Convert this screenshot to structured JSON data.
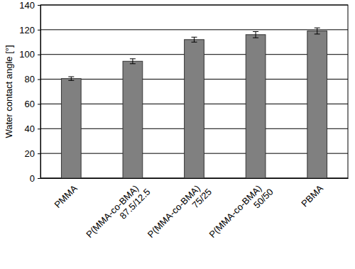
{
  "chart_data": {
    "type": "bar",
    "y_label": "Water contact angle [°]",
    "categories": [
      "PMMA",
      "P(MMA-co-BMA) 87.5/12.5",
      "P(MMA-co-BMA) 75/25",
      "P(MMA-co-BMA) 50/50",
      "PBMA"
    ],
    "values": [
      80.5,
      94.5,
      112,
      116,
      119
    ],
    "errors": [
      1.5,
      2,
      2,
      2.5,
      2.5
    ],
    "color": "#808080",
    "ylim": [
      0,
      140
    ],
    "yticks": [
      0,
      20,
      40,
      60,
      80,
      100,
      120,
      140
    ],
    "grid": true
  }
}
